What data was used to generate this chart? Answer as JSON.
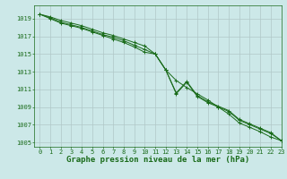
{
  "x": [
    0,
    1,
    2,
    3,
    4,
    5,
    6,
    7,
    8,
    9,
    10,
    11,
    12,
    13,
    14,
    15,
    16,
    17,
    18,
    19,
    20,
    21,
    22,
    23
  ],
  "line1": [
    1019.5,
    1019.2,
    1018.8,
    1018.5,
    1018.2,
    1017.8,
    1017.4,
    1017.1,
    1016.7,
    1016.3,
    1015.9,
    1015.0,
    1013.2,
    1012.0,
    1011.2,
    1010.5,
    1009.8,
    1009.0,
    1008.2,
    1007.2,
    1006.7,
    1006.2,
    1005.6,
    1005.2
  ],
  "line2": [
    1019.5,
    1019.0,
    1018.5,
    1018.2,
    1017.9,
    1017.5,
    1017.1,
    1016.7,
    1016.3,
    1015.8,
    1015.2,
    1015.0,
    1013.2,
    1010.5,
    1011.8,
    1010.2,
    1009.5,
    1009.0,
    1008.5,
    1007.5,
    1007.0,
    1006.5,
    1006.0,
    1005.2
  ],
  "line3": [
    1019.5,
    1019.1,
    1018.6,
    1018.3,
    1018.0,
    1017.6,
    1017.2,
    1016.9,
    1016.5,
    1016.0,
    1015.5,
    1015.0,
    1013.2,
    1010.6,
    1011.9,
    1010.3,
    1009.6,
    1009.1,
    1008.6,
    1007.6,
    1007.1,
    1006.6,
    1006.1,
    1005.2
  ],
  "bg_color": "#cce8e8",
  "line_color": "#1a6b1a",
  "marker": "+",
  "xlabel": "Graphe pression niveau de la mer (hPa)",
  "xlim": [
    -0.5,
    23
  ],
  "ylim": [
    1004.5,
    1020.5
  ],
  "yticks": [
    1005,
    1007,
    1009,
    1011,
    1013,
    1015,
    1017,
    1019
  ],
  "xticks": [
    0,
    1,
    2,
    3,
    4,
    5,
    6,
    7,
    8,
    9,
    10,
    11,
    12,
    13,
    14,
    15,
    16,
    17,
    18,
    19,
    20,
    21,
    22,
    23
  ],
  "grid_color": "#b0c8c8",
  "tick_fontsize": 5.0,
  "xlabel_fontsize": 6.5
}
